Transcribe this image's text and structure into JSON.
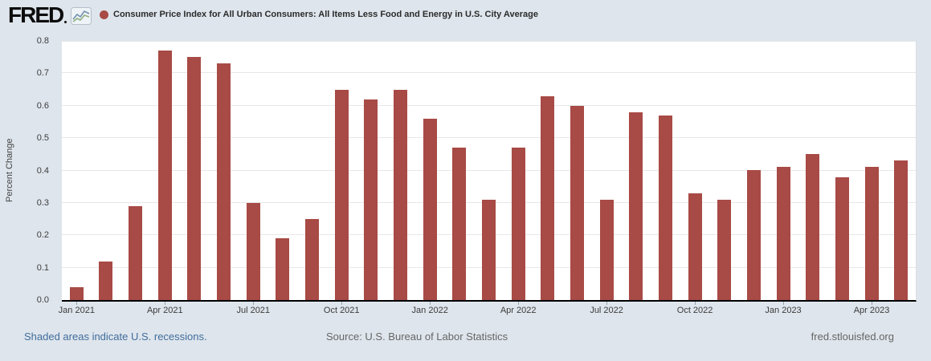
{
  "header": {
    "logo_text": "FRED",
    "title": "Consumer Price Index for All Urban Consumers: All Items Less Food and Energy in U.S. City Average"
  },
  "chart_data": {
    "type": "bar",
    "title": "Consumer Price Index for All Urban Consumers: All Items Less Food and Energy in U.S. City Average",
    "xlabel": "",
    "ylabel": "Percent Change",
    "ylim": [
      0.0,
      0.8
    ],
    "y_ticks": [
      0.0,
      0.1,
      0.2,
      0.3,
      0.4,
      0.5,
      0.6,
      0.7,
      0.8
    ],
    "grid": true,
    "legend_position": "top",
    "x_tick_every": 3,
    "bar_color": "#a84a45",
    "categories": [
      "Jan 2021",
      "Feb 2021",
      "Mar 2021",
      "Apr 2021",
      "May 2021",
      "Jun 2021",
      "Jul 2021",
      "Aug 2021",
      "Sep 2021",
      "Oct 2021",
      "Nov 2021",
      "Dec 2021",
      "Jan 2022",
      "Feb 2022",
      "Mar 2022",
      "Apr 2022",
      "May 2022",
      "Jun 2022",
      "Jul 2022",
      "Aug 2022",
      "Sep 2022",
      "Oct 2022",
      "Nov 2022",
      "Dec 2022",
      "Jan 2023",
      "Feb 2023",
      "Mar 2023",
      "Apr 2023",
      "May 2023"
    ],
    "values": [
      0.04,
      0.12,
      0.29,
      0.77,
      0.75,
      0.73,
      0.3,
      0.19,
      0.25,
      0.65,
      0.62,
      0.65,
      0.56,
      0.47,
      0.31,
      0.47,
      0.63,
      0.6,
      0.31,
      0.58,
      0.57,
      0.33,
      0.31,
      0.4,
      0.41,
      0.45,
      0.38,
      0.41,
      0.43
    ]
  },
  "footer": {
    "recession_note": "Shaded areas indicate U.S. recessions.",
    "source": "Source: U.S. Bureau of Labor Statistics",
    "site": "fred.stlouisfed.org"
  }
}
